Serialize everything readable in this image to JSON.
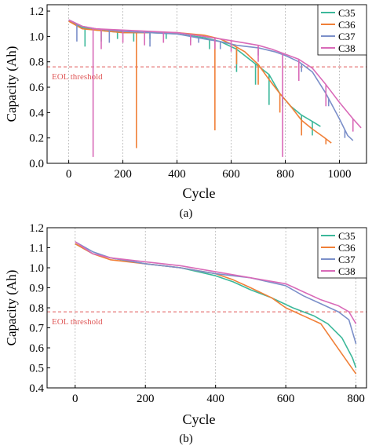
{
  "figure": {
    "panel_a_label": "(a)",
    "panel_b_label": "(b)"
  },
  "chart_data": [
    {
      "type": "line",
      "panel": "(a)",
      "xlabel": "Cycle",
      "ylabel": "Capacity (Ah)",
      "xlim": [
        -80,
        1100
      ],
      "ylim": [
        0.0,
        1.25
      ],
      "xticks": [
        0,
        200,
        400,
        600,
        800,
        1000
      ],
      "yticks": [
        0.0,
        0.2,
        0.4,
        0.6,
        0.8,
        1.0,
        1.2
      ],
      "grid": "vertical dotted",
      "legend": "top-right",
      "threshold": {
        "label": "EOL threshold",
        "value": 0.76,
        "color": "#e05a5a"
      },
      "series": [
        {
          "name": "C35",
          "color": "#3cb89a",
          "points": [
            [
              0,
              1.13
            ],
            [
              50,
              1.07
            ],
            [
              100,
              1.05
            ],
            [
              200,
              1.03
            ],
            [
              300,
              1.03
            ],
            [
              400,
              1.02
            ],
            [
              500,
              0.99
            ],
            [
              560,
              0.96
            ],
            [
              620,
              0.9
            ],
            [
              680,
              0.8
            ],
            [
              740,
              0.7
            ],
            [
              780,
              0.55
            ],
            [
              820,
              0.45
            ],
            [
              860,
              0.38
            ],
            [
              900,
              0.33
            ],
            [
              930,
              0.29
            ]
          ],
          "spikes": [
            [
              60,
              0.92
            ],
            [
              120,
              0.96
            ],
            [
              180,
              0.98
            ],
            [
              240,
              0.96
            ],
            [
              300,
              0.98
            ],
            [
              360,
              0.98
            ],
            [
              450,
              0.96
            ],
            [
              520,
              0.9
            ],
            [
              620,
              0.72
            ],
            [
              690,
              0.62
            ],
            [
              740,
              0.46
            ],
            [
              790,
              0.45
            ],
            [
              860,
              0.26
            ],
            [
              900,
              0.22
            ]
          ]
        },
        {
          "name": "C36",
          "color": "#f07f37",
          "points": [
            [
              0,
              1.12
            ],
            [
              50,
              1.06
            ],
            [
              100,
              1.05
            ],
            [
              200,
              1.03
            ],
            [
              300,
              1.03
            ],
            [
              400,
              1.03
            ],
            [
              500,
              1.01
            ],
            [
              560,
              0.98
            ],
            [
              600,
              0.94
            ],
            [
              650,
              0.88
            ],
            [
              700,
              0.78
            ],
            [
              740,
              0.66
            ],
            [
              780,
              0.55
            ],
            [
              820,
              0.45
            ],
            [
              860,
              0.34
            ],
            [
              900,
              0.27
            ],
            [
              940,
              0.21
            ],
            [
              970,
              0.16
            ]
          ],
          "spikes": [
            [
              250,
              0.12
            ],
            [
              540,
              0.26
            ],
            [
              620,
              0.78
            ],
            [
              700,
              0.62
            ],
            [
              780,
              0.4
            ],
            [
              860,
              0.22
            ],
            [
              950,
              0.15
            ]
          ]
        },
        {
          "name": "C37",
          "color": "#7b8fc9",
          "points": [
            [
              0,
              1.13
            ],
            [
              50,
              1.08
            ],
            [
              100,
              1.06
            ],
            [
              200,
              1.04
            ],
            [
              300,
              1.03
            ],
            [
              400,
              1.02
            ],
            [
              500,
              0.98
            ],
            [
              560,
              0.96
            ],
            [
              620,
              0.93
            ],
            [
              700,
              0.91
            ],
            [
              760,
              0.88
            ],
            [
              800,
              0.85
            ],
            [
              850,
              0.8
            ],
            [
              900,
              0.72
            ],
            [
              950,
              0.55
            ],
            [
              1000,
              0.35
            ],
            [
              1030,
              0.22
            ],
            [
              1050,
              0.18
            ]
          ],
          "spikes": [
            [
              30,
              0.96
            ],
            [
              150,
              0.95
            ],
            [
              300,
              0.92
            ],
            [
              480,
              0.95
            ],
            [
              560,
              0.9
            ],
            [
              700,
              0.85
            ],
            [
              860,
              0.72
            ],
            [
              960,
              0.45
            ],
            [
              1020,
              0.2
            ]
          ]
        },
        {
          "name": "C38",
          "color": "#d96ab8",
          "points": [
            [
              0,
              1.13
            ],
            [
              50,
              1.08
            ],
            [
              100,
              1.06
            ],
            [
              200,
              1.05
            ],
            [
              300,
              1.04
            ],
            [
              400,
              1.03
            ],
            [
              500,
              1.0
            ],
            [
              560,
              0.98
            ],
            [
              620,
              0.96
            ],
            [
              700,
              0.93
            ],
            [
              750,
              0.9
            ],
            [
              800,
              0.86
            ],
            [
              850,
              0.82
            ],
            [
              900,
              0.75
            ],
            [
              950,
              0.62
            ],
            [
              1000,
              0.48
            ],
            [
              1050,
              0.35
            ],
            [
              1080,
              0.28
            ]
          ],
          "spikes": [
            [
              90,
              0.05
            ],
            [
              120,
              0.9
            ],
            [
              200,
              0.95
            ],
            [
              280,
              0.93
            ],
            [
              350,
              0.95
            ],
            [
              450,
              0.93
            ],
            [
              540,
              0.9
            ],
            [
              600,
              0.88
            ],
            [
              700,
              0.8
            ],
            [
              790,
              0.05
            ],
            [
              850,
              0.65
            ],
            [
              950,
              0.45
            ],
            [
              1050,
              0.25
            ]
          ]
        }
      ]
    },
    {
      "type": "line",
      "panel": "(b)",
      "xlabel": "Cycle",
      "ylabel": "Capacity (Ah)",
      "xlim": [
        -80,
        830
      ],
      "ylim": [
        0.4,
        1.2
      ],
      "xticks": [
        0,
        200,
        400,
        600,
        800
      ],
      "yticks": [
        0.4,
        0.5,
        0.6,
        0.7,
        0.8,
        0.9,
        1.0,
        1.1,
        1.2
      ],
      "grid": "vertical dotted",
      "legend": "top-right",
      "threshold": {
        "label": "EOL threshold",
        "value": 0.78,
        "color": "#e05a5a"
      },
      "series": [
        {
          "name": "C35",
          "color": "#3cb89a",
          "points": [
            [
              0,
              1.12
            ],
            [
              50,
              1.07
            ],
            [
              100,
              1.05
            ],
            [
              200,
              1.02
            ],
            [
              300,
              1.0
            ],
            [
              400,
              0.96
            ],
            [
              450,
              0.93
            ],
            [
              500,
              0.89
            ],
            [
              560,
              0.85
            ],
            [
              620,
              0.8
            ],
            [
              680,
              0.76
            ],
            [
              720,
              0.72
            ],
            [
              760,
              0.65
            ],
            [
              790,
              0.55
            ],
            [
              800,
              0.5
            ]
          ]
        },
        {
          "name": "C36",
          "color": "#f07f37",
          "points": [
            [
              0,
              1.12
            ],
            [
              50,
              1.07
            ],
            [
              100,
              1.04
            ],
            [
              200,
              1.02
            ],
            [
              300,
              1.0
            ],
            [
              400,
              0.97
            ],
            [
              450,
              0.94
            ],
            [
              500,
              0.9
            ],
            [
              560,
              0.85
            ],
            [
              600,
              0.8
            ],
            [
              650,
              0.76
            ],
            [
              700,
              0.72
            ],
            [
              740,
              0.62
            ],
            [
              780,
              0.52
            ],
            [
              800,
              0.47
            ]
          ]
        },
        {
          "name": "C37",
          "color": "#7b8fc9",
          "points": [
            [
              0,
              1.13
            ],
            [
              50,
              1.08
            ],
            [
              100,
              1.05
            ],
            [
              200,
              1.02
            ],
            [
              300,
              1.0
            ],
            [
              400,
              0.97
            ],
            [
              500,
              0.95
            ],
            [
              600,
              0.91
            ],
            [
              650,
              0.86
            ],
            [
              700,
              0.82
            ],
            [
              750,
              0.78
            ],
            [
              780,
              0.74
            ],
            [
              800,
              0.62
            ]
          ]
        },
        {
          "name": "C38",
          "color": "#d96ab8",
          "points": [
            [
              0,
              1.13
            ],
            [
              50,
              1.07
            ],
            [
              100,
              1.05
            ],
            [
              200,
              1.03
            ],
            [
              300,
              1.01
            ],
            [
              400,
              0.98
            ],
            [
              500,
              0.95
            ],
            [
              600,
              0.92
            ],
            [
              650,
              0.88
            ],
            [
              700,
              0.84
            ],
            [
              750,
              0.81
            ],
            [
              780,
              0.78
            ],
            [
              800,
              0.72
            ]
          ]
        }
      ]
    }
  ]
}
